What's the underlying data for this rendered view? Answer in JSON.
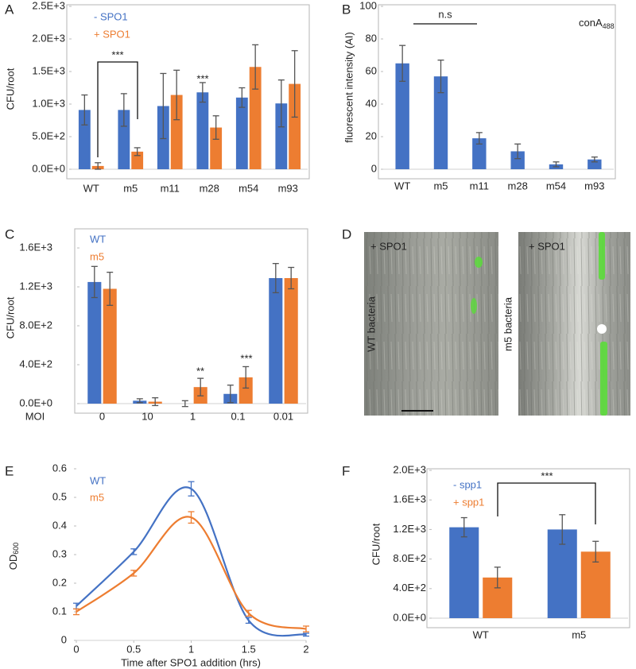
{
  "panel_labels": [
    "A",
    "B",
    "C",
    "D",
    "E",
    "F"
  ],
  "chart_data": [
    {
      "type": "bar",
      "ylabel": "CFU/root",
      "categories": [
        "WT",
        "m5",
        "m11",
        "m28",
        "m54",
        "m93"
      ],
      "series": [
        {
          "name": "- SPO1",
          "color": "#4472c4",
          "values": [
            910,
            910,
            970,
            1180,
            1100,
            1010
          ],
          "errors": [
            230,
            250,
            500,
            150,
            150,
            360
          ]
        },
        {
          "name": "+ SPO1",
          "color": "#ed7d31",
          "values": [
            50,
            270,
            1140,
            640,
            1570,
            1310
          ],
          "errors": [
            50,
            60,
            380,
            180,
            340,
            510
          ]
        }
      ],
      "ylim": [
        0,
        2500
      ],
      "yticks": [
        {
          "value": 0,
          "label": "0.0E+0"
        },
        {
          "value": 500,
          "label": "5.0E+2"
        },
        {
          "value": 1000,
          "label": "1.0E+3"
        },
        {
          "value": 1500,
          "label": "1.5E+3"
        },
        {
          "value": 2000,
          "label": "2.0E+3"
        },
        {
          "value": 2500,
          "label": "2.5E+3"
        }
      ],
      "annotations": [
        "***",
        "***"
      ]
    },
    {
      "type": "bar",
      "ylabel": "fluorescent intensity (AI)",
      "categories": [
        "WT",
        "m5",
        "m11",
        "m28",
        "m54",
        "m93"
      ],
      "values": [
        65,
        57,
        19,
        11,
        3,
        6
      ],
      "errors": [
        11,
        10,
        3.5,
        4.5,
        1.5,
        1.5
      ],
      "color": "#4472c4",
      "ylim": [
        0,
        100
      ],
      "yticks": [
        0,
        20,
        40,
        60,
        80,
        100
      ],
      "annotations": [
        "n.s"
      ],
      "label": "conA",
      "label_subscript": "488"
    },
    {
      "type": "bar",
      "ylabel": "CFU/root",
      "xlabel": "MOI",
      "categories": [
        "0",
        "10",
        "1",
        "0.1",
        "0.01"
      ],
      "series": [
        {
          "name": "WT",
          "color": "#4472c4",
          "values": [
            1250,
            30,
            0,
            100,
            1290
          ],
          "errors": [
            160,
            20,
            30,
            90,
            150
          ]
        },
        {
          "name": "m5",
          "color": "#ed7d31",
          "values": [
            1180,
            20,
            170,
            270,
            1290
          ],
          "errors": [
            170,
            40,
            90,
            110,
            110
          ]
        }
      ],
      "ylim": [
        0,
        1780
      ],
      "yticks": [
        {
          "value": 0,
          "label": "0.0E+0"
        },
        {
          "value": 400,
          "label": "4.0E+2"
        },
        {
          "value": 800,
          "label": "8.0E+2"
        },
        {
          "value": 1200,
          "label": "1.2E+3"
        },
        {
          "value": 1600,
          "label": "1.6E+3"
        }
      ],
      "annotations": [
        "**",
        "***"
      ]
    },
    {
      "type": "line",
      "xlabel": "Time after SPO1 addition (hrs)",
      "ylabel": "OD",
      "ylabel_subscript": "600",
      "x": [
        0,
        0.5,
        1,
        1.5,
        2
      ],
      "series": [
        {
          "name": "WT",
          "color": "#4472c4",
          "values": [
            0.12,
            0.31,
            0.53,
            0.07,
            0.02
          ],
          "errors": [
            0.01,
            0.01,
            0.025,
            0.01,
            0.005
          ]
        },
        {
          "name": "m5",
          "color": "#ed7d31",
          "values": [
            0.1,
            0.235,
            0.43,
            0.095,
            0.04
          ],
          "errors": [
            0.01,
            0.01,
            0.02,
            0.01,
            0.01
          ]
        }
      ],
      "xlim": [
        0,
        2
      ],
      "xticks": [
        0,
        0.5,
        1,
        1.5,
        2
      ],
      "ylim": [
        0,
        0.6
      ],
      "yticks": [
        0,
        0.1,
        0.2,
        0.3,
        0.4,
        0.5,
        0.6
      ]
    },
    {
      "type": "bar",
      "ylabel": "CFU/root",
      "categories": [
        "WT",
        "m5"
      ],
      "series": [
        {
          "name": "- spp1",
          "color": "#4472c4",
          "values": [
            1230,
            1200
          ],
          "errors": [
            130,
            200
          ]
        },
        {
          "name": "+ spp1",
          "color": "#ed7d31",
          "values": [
            550,
            900
          ],
          "errors": [
            140,
            140
          ]
        }
      ],
      "ylim": [
        0,
        2000
      ],
      "yticks": [
        {
          "value": 0,
          "label": "0.0E+0"
        },
        {
          "value": 400,
          "label": "4.0E+2"
        },
        {
          "value": 800,
          "label": "8.0E+2"
        },
        {
          "value": 1200,
          "label": "1.2E+3"
        },
        {
          "value": 1600,
          "label": "1.6E+3"
        },
        {
          "value": 2000,
          "label": "2.0E+3"
        }
      ],
      "annotations": [
        "***"
      ]
    }
  ],
  "images": [
    {
      "label": "+ SPO1",
      "caption": "WT bacteria"
    },
    {
      "label": "+ SPO1",
      "caption": "m5 bacteria"
    }
  ]
}
